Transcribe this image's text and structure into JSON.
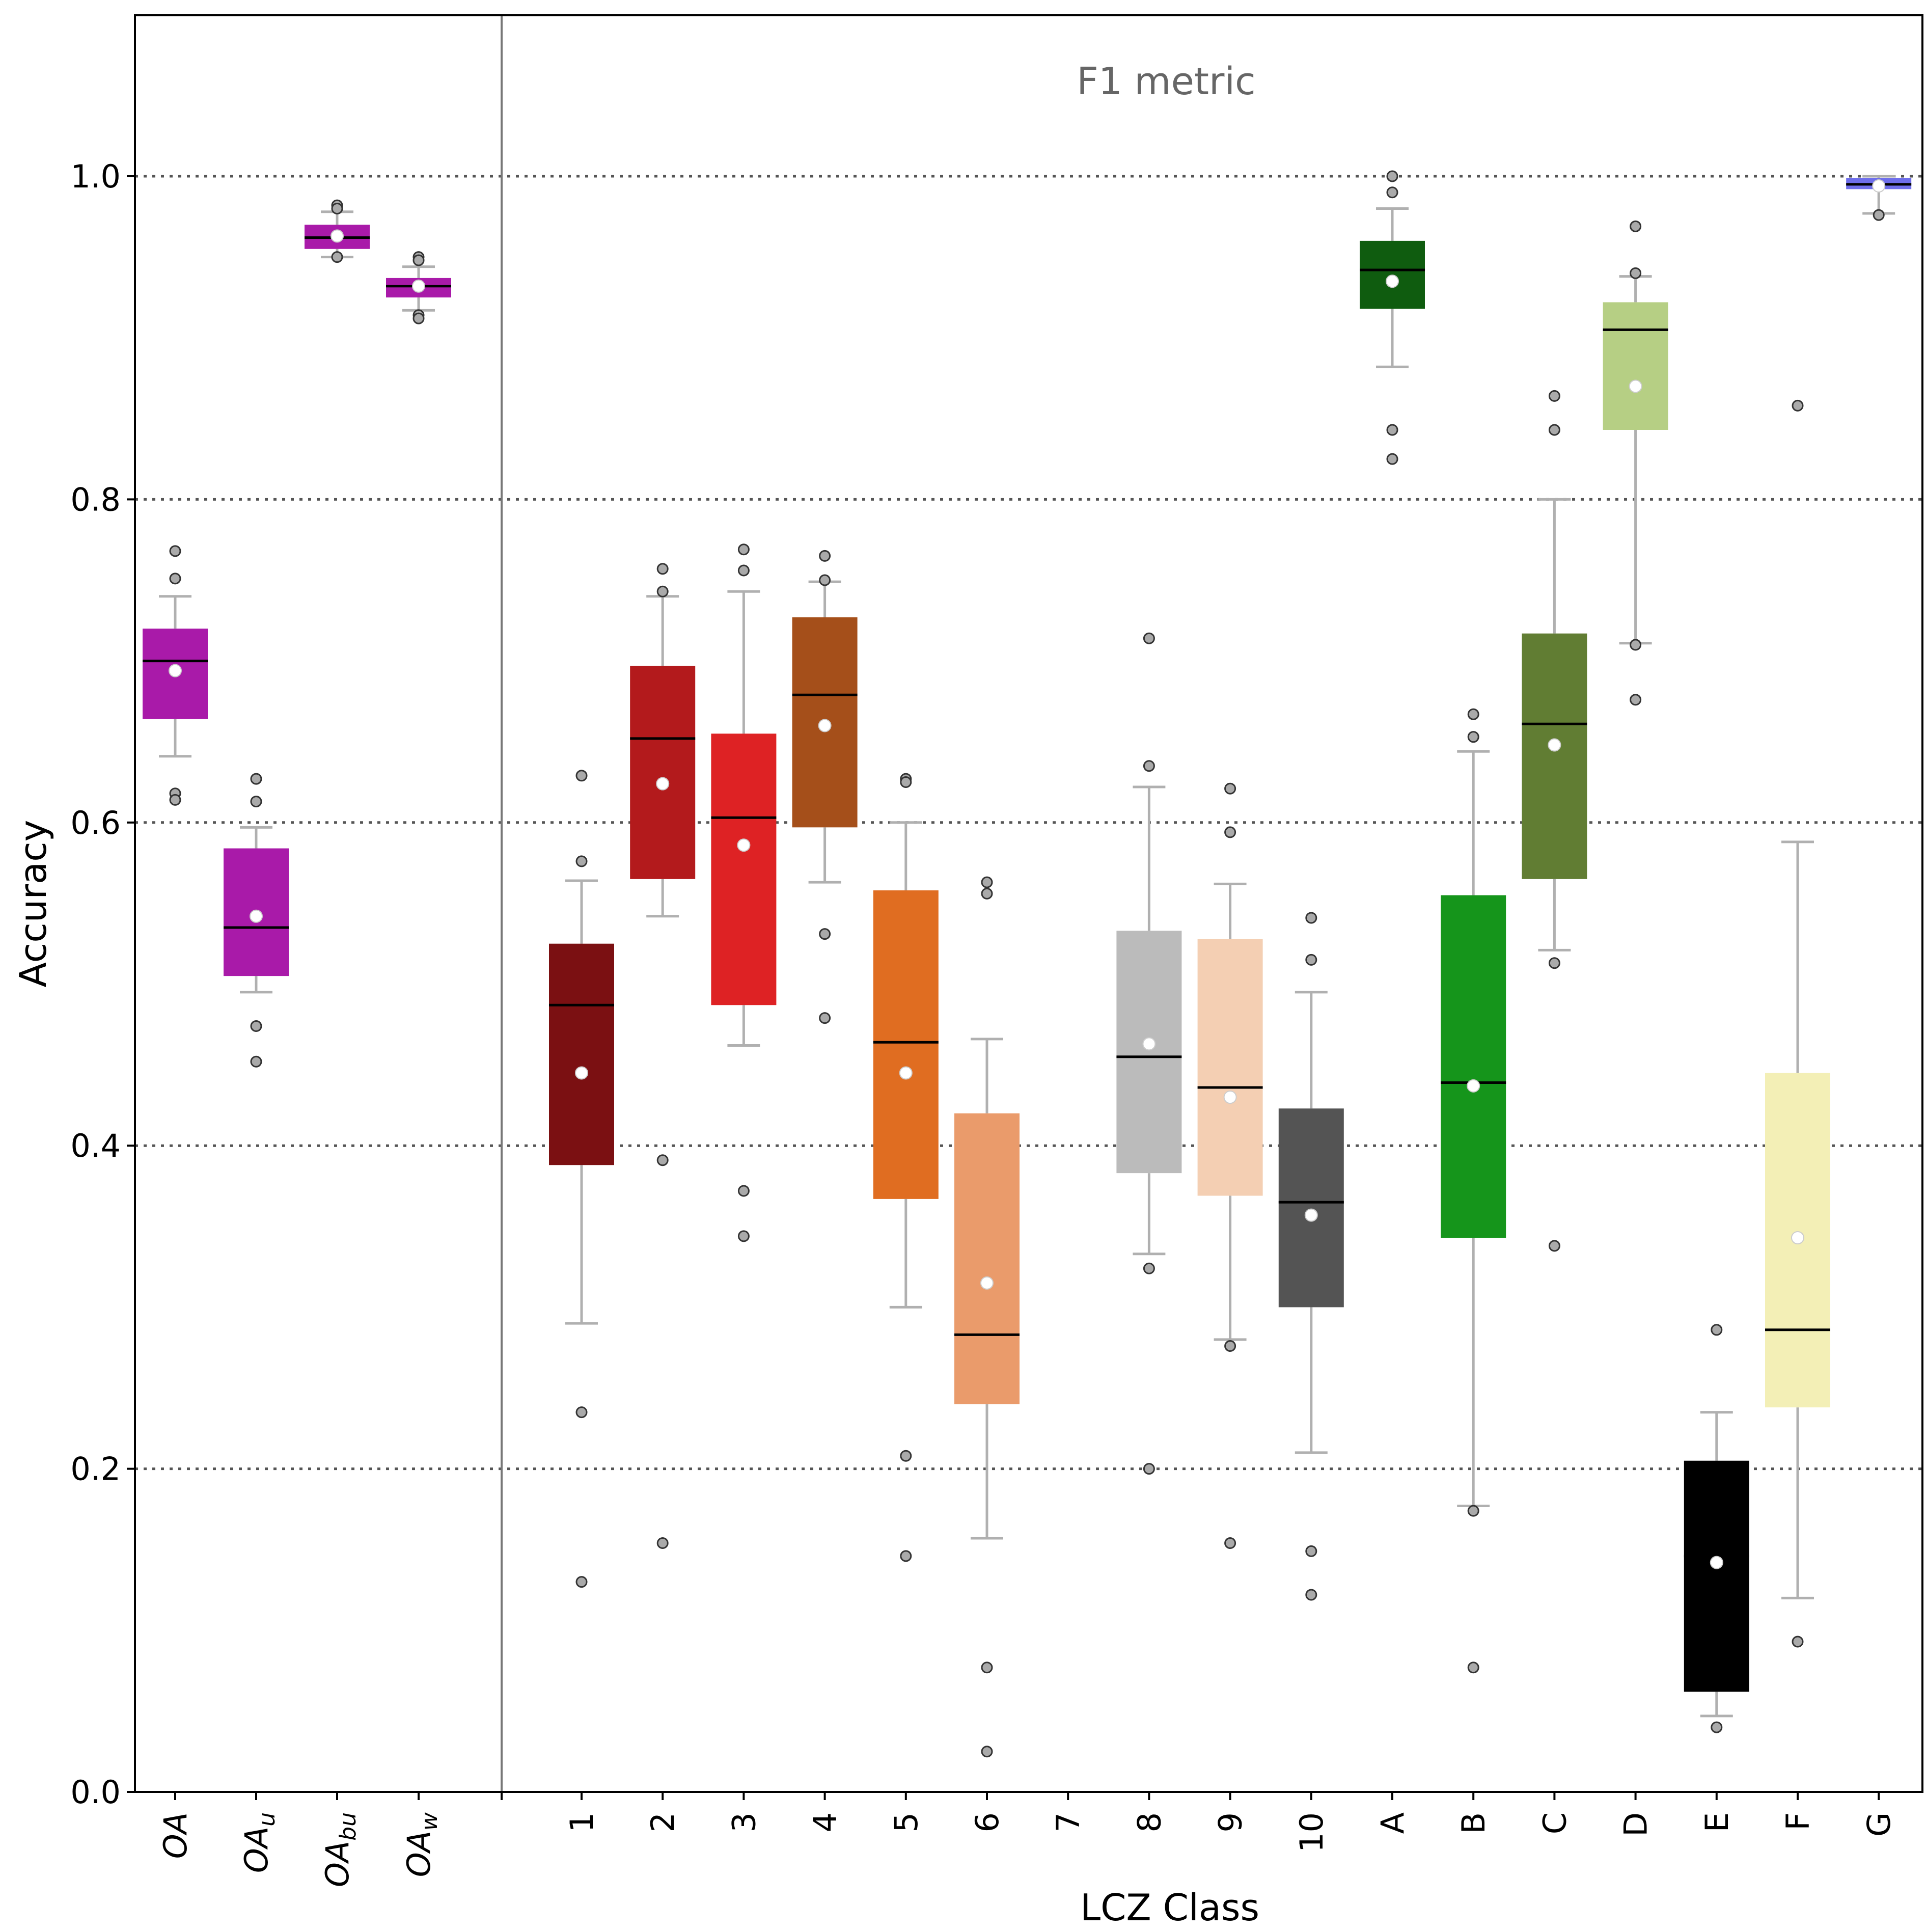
{
  "chart_data": {
    "type": "box",
    "title": "F1 metric",
    "xlabel": "LCZ Class",
    "ylabel": "Accuracy",
    "ylim": [
      0.0,
      1.1
    ],
    "y_ticks": [
      "0.0",
      "0.2",
      "0.4",
      "0.6",
      "0.8",
      "1.0"
    ],
    "grid": "horizontal dotted lines at 0.2, 0.4, 0.6, 0.8, 1.0",
    "mean_marker": "white circle",
    "median_marker": "black line",
    "series": [
      {
        "name": "OA",
        "label": {
          "base": "OA",
          "sub": ""
        },
        "color": "#a91aa9",
        "q1": 0.664,
        "median": 0.7,
        "q3": 0.72,
        "whisker_low": 0.641,
        "whisker_high": 0.74,
        "mean": 0.694,
        "outliers": [
          0.768,
          0.751,
          0.618,
          0.614
        ]
      },
      {
        "name": "OA_u",
        "label": {
          "base": "OA",
          "sub": "u"
        },
        "color": "#a91aa9",
        "q1": 0.505,
        "median": 0.535,
        "q3": 0.584,
        "whisker_low": 0.495,
        "whisker_high": 0.597,
        "mean": 0.542,
        "outliers": [
          0.627,
          0.613,
          0.474,
          0.452
        ]
      },
      {
        "name": "OA_bu",
        "label": {
          "base": "OA",
          "sub": "bu"
        },
        "color": "#a91aa9",
        "q1": 0.955,
        "median": 0.962,
        "q3": 0.97,
        "whisker_low": 0.95,
        "whisker_high": 0.978,
        "mean": 0.963,
        "outliers": [
          0.982,
          0.98,
          0.95
        ]
      },
      {
        "name": "OA_w",
        "label": {
          "base": "OA",
          "sub": "w"
        },
        "color": "#a91aa9",
        "q1": 0.925,
        "median": 0.932,
        "q3": 0.937,
        "whisker_low": 0.917,
        "whisker_high": 0.944,
        "mean": 0.932,
        "outliers": [
          0.95,
          0.948,
          0.914,
          0.912
        ]
      },
      {
        "name": "1",
        "label": {
          "base": "1",
          "sub": ""
        },
        "color": "#7b1012",
        "q1": 0.388,
        "median": 0.487,
        "q3": 0.525,
        "whisker_low": 0.29,
        "whisker_high": 0.564,
        "mean": 0.445,
        "outliers": [
          0.629,
          0.576,
          0.235,
          0.13
        ]
      },
      {
        "name": "2",
        "label": {
          "base": "2",
          "sub": ""
        },
        "color": "#b31a1c",
        "q1": 0.565,
        "median": 0.652,
        "q3": 0.697,
        "whisker_low": 0.542,
        "whisker_high": 0.74,
        "mean": 0.624,
        "outliers": [
          0.757,
          0.743,
          0.391,
          0.154
        ]
      },
      {
        "name": "3",
        "label": {
          "base": "3",
          "sub": ""
        },
        "color": "#de2224",
        "q1": 0.487,
        "median": 0.603,
        "q3": 0.655,
        "whisker_low": 0.462,
        "whisker_high": 0.743,
        "mean": 0.586,
        "outliers": [
          0.769,
          0.756,
          0.372,
          0.344
        ]
      },
      {
        "name": "4",
        "label": {
          "base": "4",
          "sub": ""
        },
        "color": "#a54f1a",
        "q1": 0.597,
        "median": 0.679,
        "q3": 0.727,
        "whisker_low": 0.563,
        "whisker_high": 0.749,
        "mean": 0.66,
        "outliers": [
          0.765,
          0.75,
          0.531,
          0.479
        ]
      },
      {
        "name": "5",
        "label": {
          "base": "5",
          "sub": ""
        },
        "color": "#e06d21",
        "q1": 0.367,
        "median": 0.464,
        "q3": 0.558,
        "whisker_low": 0.3,
        "whisker_high": 0.6,
        "mean": 0.445,
        "outliers": [
          0.627,
          0.625,
          0.208,
          0.146
        ]
      },
      {
        "name": "6",
        "label": {
          "base": "6",
          "sub": ""
        },
        "color": "#ea9b6b",
        "q1": 0.24,
        "median": 0.283,
        "q3": 0.42,
        "whisker_low": 0.157,
        "whisker_high": 0.466,
        "mean": 0.315,
        "outliers": [
          0.563,
          0.556,
          0.077,
          0.025
        ]
      },
      {
        "name": "7",
        "label": {
          "base": "7",
          "sub": ""
        },
        "color": "#ffffff",
        "q1": null,
        "median": null,
        "q3": null,
        "whisker_low": null,
        "whisker_high": null,
        "mean": null,
        "outliers": []
      },
      {
        "name": "8",
        "label": {
          "base": "8",
          "sub": ""
        },
        "color": "#bbbbbb",
        "q1": 0.383,
        "median": 0.455,
        "q3": 0.533,
        "whisker_low": 0.333,
        "whisker_high": 0.622,
        "mean": 0.463,
        "outliers": [
          0.714,
          0.635,
          0.324,
          0.2
        ]
      },
      {
        "name": "9",
        "label": {
          "base": "9",
          "sub": ""
        },
        "color": "#f4cfb3",
        "q1": 0.369,
        "median": 0.436,
        "q3": 0.528,
        "whisker_low": 0.28,
        "whisker_high": 0.562,
        "mean": 0.43,
        "outliers": [
          0.621,
          0.594,
          0.276,
          0.154
        ]
      },
      {
        "name": "10",
        "label": {
          "base": "10",
          "sub": ""
        },
        "color": "#545454",
        "q1": 0.3,
        "median": 0.365,
        "q3": 0.423,
        "whisker_low": 0.21,
        "whisker_high": 0.495,
        "mean": 0.357,
        "outliers": [
          0.541,
          0.515,
          0.149,
          0.122
        ]
      },
      {
        "name": "A",
        "label": {
          "base": "A",
          "sub": ""
        },
        "color": "#0f5c0f",
        "q1": 0.918,
        "median": 0.942,
        "q3": 0.96,
        "whisker_low": 0.882,
        "whisker_high": 0.98,
        "mean": 0.935,
        "outliers": [
          1.0,
          0.99,
          0.843,
          0.825
        ]
      },
      {
        "name": "B",
        "label": {
          "base": "B",
          "sub": ""
        },
        "color": "#15951b",
        "q1": 0.343,
        "median": 0.439,
        "q3": 0.555,
        "whisker_low": 0.177,
        "whisker_high": 0.644,
        "mean": 0.437,
        "outliers": [
          0.667,
          0.653,
          0.174,
          0.077
        ]
      },
      {
        "name": "C",
        "label": {
          "base": "C",
          "sub": ""
        },
        "color": "#617d33",
        "q1": 0.565,
        "median": 0.661,
        "q3": 0.717,
        "whisker_low": 0.521,
        "whisker_high": 0.8,
        "mean": 0.648,
        "outliers": [
          0.864,
          0.843,
          0.513,
          0.338
        ]
      },
      {
        "name": "D",
        "label": {
          "base": "D",
          "sub": ""
        },
        "color": "#b6cf84",
        "q1": 0.843,
        "median": 0.905,
        "q3": 0.922,
        "whisker_low": 0.711,
        "whisker_high": 0.938,
        "mean": 0.87,
        "outliers": [
          0.969,
          0.94,
          0.71,
          0.676
        ]
      },
      {
        "name": "E",
        "label": {
          "base": "E",
          "sub": ""
        },
        "color": "#000000",
        "q1": 0.062,
        "median": 0.146,
        "q3": 0.205,
        "whisker_low": 0.047,
        "whisker_high": 0.235,
        "mean": 0.142,
        "outliers": [
          0.286,
          0.04
        ]
      },
      {
        "name": "F",
        "label": {
          "base": "F",
          "sub": ""
        },
        "color": "#f3efb6",
        "q1": 0.238,
        "median": 0.286,
        "q3": 0.445,
        "whisker_low": 0.12,
        "whisker_high": 0.588,
        "mean": 0.343,
        "outliers": [
          0.858,
          0.093
        ]
      },
      {
        "name": "G",
        "label": {
          "base": "G",
          "sub": ""
        },
        "color": "#6e6eeb",
        "q1": 0.992,
        "median": 0.995,
        "q3": 0.999,
        "whisker_low": 0.977,
        "whisker_high": 1.0,
        "mean": 0.994,
        "outliers": [
          0.976
        ]
      }
    ]
  }
}
